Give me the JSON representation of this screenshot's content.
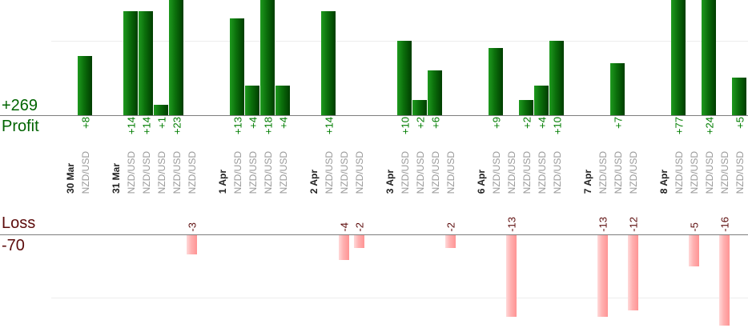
{
  "summary": {
    "profit_total": "+269",
    "profit_label": "Profit",
    "loss_label": "Loss",
    "loss_total": "-70"
  },
  "colors": {
    "profit_bar_light": "#1e9a1e",
    "profit_bar_dark": "#003d00",
    "profit_text": "#007d00",
    "summary_profit_text": "#006400",
    "loss_bar_light": "#ffd9d9",
    "loss_bar_dark": "#ff9494",
    "loss_text": "#5c0b0b",
    "date_text": "#222222",
    "instrument_text": "#999999"
  },
  "chart_data": {
    "type": "bar",
    "description": "Per-trade profit/loss bar chart grouped by trade date; profits plotted above upper axis, losses below lower axis",
    "axis": {
      "profit_label": "Profit",
      "profit_total": "+269",
      "loss_label": "Loss",
      "loss_total": "-70",
      "profit_gridline_value": 10,
      "loss_gridline_value": -10,
      "profit_visible_max": 15.5,
      "loss_visible_min": -14.4
    },
    "groups": [
      {
        "date": "30 Mar",
        "trades": [
          {
            "instrument": "NZD/USD",
            "value": 8,
            "label": "+8"
          }
        ]
      },
      {
        "date": "31 Mar",
        "trades": [
          {
            "instrument": "NZD/USD",
            "value": 14,
            "label": "+14"
          },
          {
            "instrument": "NZD/USD",
            "value": 14,
            "label": "+14"
          },
          {
            "instrument": "NZD/USD",
            "value": 1,
            "label": "+1"
          },
          {
            "instrument": "NZD/USD",
            "value": 23,
            "label": "+23"
          },
          {
            "instrument": "NZD/USD",
            "value": -3,
            "label": "-3"
          }
        ]
      },
      {
        "date": "1 Apr",
        "trades": [
          {
            "instrument": "NZD/USD",
            "value": 13,
            "label": "+13"
          },
          {
            "instrument": "NZD/USD",
            "value": 4,
            "label": "+4"
          },
          {
            "instrument": "NZD/USD",
            "value": 18,
            "label": "+18"
          },
          {
            "instrument": "NZD/USD",
            "value": 4,
            "label": "+4"
          }
        ]
      },
      {
        "date": "2 Apr",
        "trades": [
          {
            "instrument": "NZD/USD",
            "value": 14,
            "label": "+14"
          },
          {
            "instrument": "NZD/USD",
            "value": -4,
            "label": "-4"
          },
          {
            "instrument": "NZD/USD",
            "value": -2,
            "label": "-2"
          }
        ]
      },
      {
        "date": "3 Apr",
        "trades": [
          {
            "instrument": "NZD/USD",
            "value": 10,
            "label": "+10"
          },
          {
            "instrument": "NZD/USD",
            "value": 2,
            "label": "+2"
          },
          {
            "instrument": "NZD/USD",
            "value": 6,
            "label": "+6"
          },
          {
            "instrument": "NZD/USD",
            "value": -2,
            "label": "-2"
          }
        ]
      },
      {
        "date": "6 Apr",
        "trades": [
          {
            "instrument": "NZD/USD",
            "value": 9,
            "label": "+9"
          },
          {
            "instrument": "NZD/USD",
            "value": -13,
            "label": "-13"
          },
          {
            "instrument": "NZD/USD",
            "value": 2,
            "label": "+2"
          },
          {
            "instrument": "NZD/USD",
            "value": 4,
            "label": "+4"
          },
          {
            "instrument": "NZD/USD",
            "value": 10,
            "label": "+10"
          }
        ]
      },
      {
        "date": "7 Apr",
        "trades": [
          {
            "instrument": "NZD/USD",
            "value": -13,
            "label": "-13"
          },
          {
            "instrument": "NZD/USD",
            "value": 7,
            "label": "+7"
          },
          {
            "instrument": "NZD/USD",
            "value": -12,
            "label": "-12"
          }
        ]
      },
      {
        "date": "8 Apr",
        "trades": [
          {
            "instrument": "NZD/USD",
            "value": 77,
            "label": "+77"
          },
          {
            "instrument": "NZD/USD",
            "value": -5,
            "label": "-5"
          },
          {
            "instrument": "NZD/USD",
            "value": 24,
            "label": "+24"
          },
          {
            "instrument": "NZD/USD",
            "value": -16,
            "label": "-16"
          },
          {
            "instrument": "NZD/USD",
            "value": 5,
            "label": "+5"
          }
        ]
      }
    ]
  }
}
